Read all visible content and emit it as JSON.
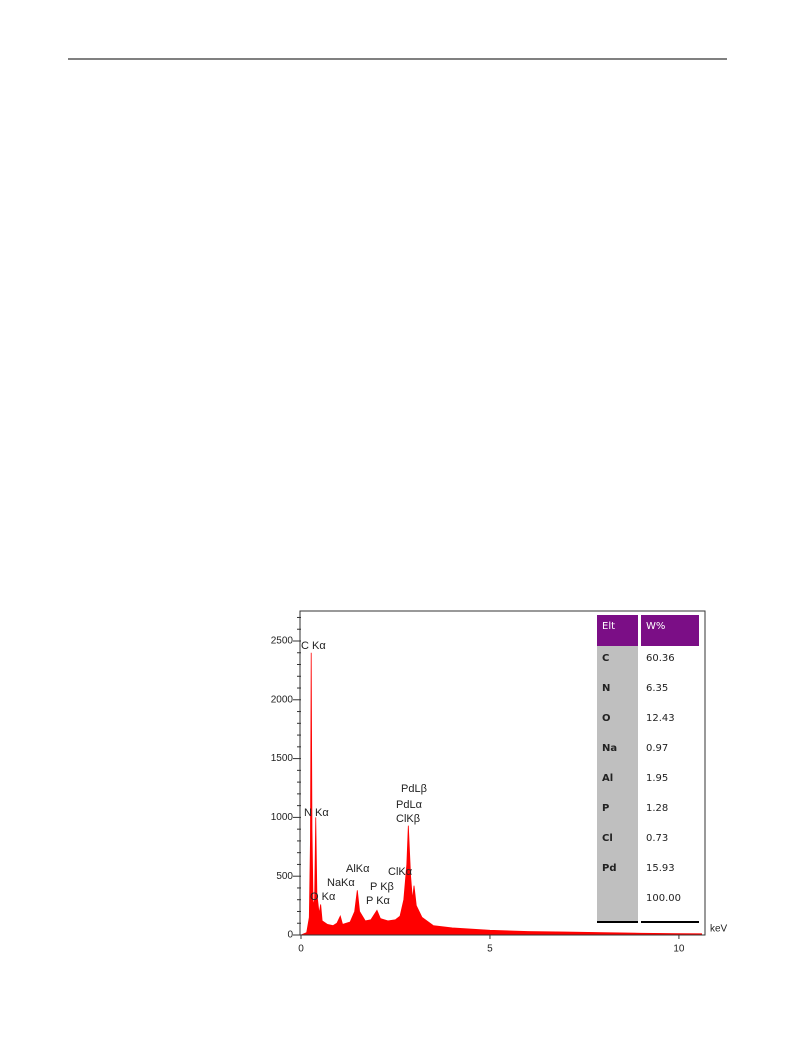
{
  "chart_data": {
    "type": "area",
    "color": "#ff0000",
    "x_unit": "keV",
    "x": [
      0.0,
      0.15,
      0.22,
      0.25,
      0.27,
      0.29,
      0.32,
      0.36,
      0.39,
      0.42,
      0.48,
      0.52,
      0.56,
      0.7,
      0.85,
      0.95,
      1.04,
      1.1,
      1.3,
      1.42,
      1.49,
      1.55,
      1.7,
      1.85,
      2.01,
      2.1,
      2.3,
      2.5,
      2.62,
      2.72,
      2.8,
      2.84,
      2.9,
      2.95,
      2.99,
      3.05,
      3.2,
      3.5,
      4,
      5,
      6,
      7,
      8,
      9,
      10,
      10.6
    ],
    "values": [
      0,
      20,
      150,
      800,
      2400,
      900,
      250,
      300,
      1000,
      350,
      180,
      260,
      120,
      90,
      80,
      100,
      160,
      90,
      110,
      200,
      380,
      200,
      120,
      130,
      210,
      140,
      120,
      130,
      160,
      300,
      600,
      930,
      500,
      300,
      420,
      250,
      150,
      80,
      60,
      40,
      30,
      25,
      20,
      15,
      12,
      10
    ],
    "xlim": [
      0,
      10.69
    ],
    "ylim": [
      0,
      2755
    ],
    "xticks": [
      0,
      5,
      10
    ],
    "yticks": [
      0,
      500,
      1000,
      1500,
      2000,
      2500
    ],
    "yminorticks": [
      100,
      200,
      300,
      400,
      600,
      700,
      800,
      900,
      1100,
      1200,
      1300,
      1400,
      1600,
      1700,
      1800,
      1900,
      2100,
      2200,
      2300,
      2400,
      2600,
      2700
    ],
    "annotations": [
      "C Kα",
      "N Kα",
      "AlKα",
      "NaKα",
      "O Kα",
      "P Kβ",
      "P Kα",
      "ClKα",
      "PdLβ",
      "PdLα",
      "ClKβ"
    ]
  },
  "table": {
    "header": [
      "Elt",
      "W%"
    ],
    "rows": [
      [
        "C",
        "60.36"
      ],
      [
        "N",
        "6.35"
      ],
      [
        "O",
        "12.43"
      ],
      [
        "Na",
        "0.97"
      ],
      [
        "Al",
        "1.95"
      ],
      [
        "P",
        "1.28"
      ],
      [
        "Cl",
        "0.73"
      ],
      [
        "Pd",
        "15.93"
      ]
    ],
    "total": "100.00"
  }
}
